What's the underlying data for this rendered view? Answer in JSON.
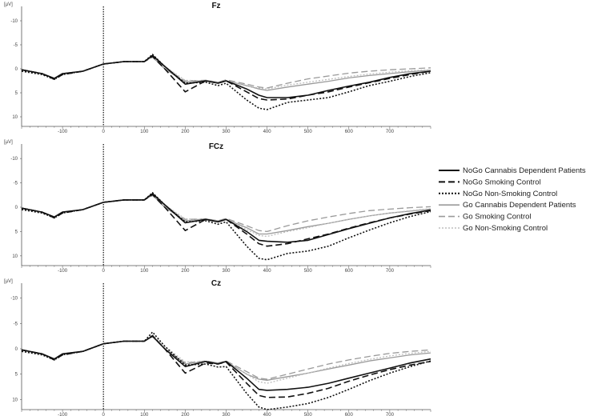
{
  "chart_data": {
    "type": "line",
    "legend_position": "right",
    "x_ticks": [
      "-100",
      "0",
      "100",
      "200",
      "300",
      "400",
      "500",
      "600",
      "700"
    ],
    "unit_label": "[µV]",
    "series": [
      {
        "name": "NoGo Cannabis Dependent Patients",
        "color": "#111111",
        "dash": "solid"
      },
      {
        "name": "NoGo Smoking Control",
        "color": "#111111",
        "dash": "dashed"
      },
      {
        "name": "NoGo Non-Smoking Control",
        "color": "#111111",
        "dash": "dotted"
      },
      {
        "name": "Go Cannabis Dependent Patients",
        "color": "#9a9a9a",
        "dash": "solid"
      },
      {
        "name": "Go Smoking Control",
        "color": "#9a9a9a",
        "dash": "dashed"
      },
      {
        "name": "Go Non-Smoking Control",
        "color": "#bdbdbd",
        "dash": "dotted"
      }
    ],
    "panels": [
      {
        "title": "Fz",
        "y_ticks": [
          "-10",
          "-5",
          "0",
          "5",
          "10"
        ],
        "xlim": [
          -200,
          800
        ],
        "ylim": [
          -12,
          12
        ],
        "y_inverted": true,
        "x": [
          -200,
          -150,
          -120,
          -100,
          -50,
          0,
          50,
          100,
          120,
          150,
          200,
          250,
          280,
          300,
          350,
          380,
          400,
          450,
          500,
          550,
          600,
          650,
          700,
          750,
          800
        ],
        "values": [
          [
            0.2,
            1.0,
            2.0,
            1.0,
            0.5,
            -1.0,
            -1.5,
            -1.5,
            -2.8,
            -0.5,
            3.2,
            2.5,
            3.0,
            2.5,
            4.2,
            5.5,
            6.0,
            6.0,
            5.5,
            4.5,
            3.6,
            2.8,
            1.8,
            1.0,
            0.5
          ],
          [
            0.2,
            1.0,
            2.2,
            1.2,
            0.5,
            -1.0,
            -1.5,
            -1.5,
            -2.6,
            0,
            4.8,
            2.5,
            3.0,
            2.5,
            4.8,
            6.2,
            6.5,
            6.3,
            5.5,
            4.8,
            3.8,
            2.9,
            2.0,
            1.2,
            0.5
          ],
          [
            0.5,
            1.2,
            2.2,
            1.2,
            0.5,
            -1.0,
            -1.5,
            -1.5,
            -3.0,
            -0.5,
            3.0,
            2.8,
            3.5,
            3.0,
            6.5,
            8.2,
            8.5,
            7.0,
            6.5,
            6.0,
            4.8,
            3.5,
            2.6,
            1.6,
            0.8
          ],
          [
            0.2,
            1.0,
            2.0,
            1.0,
            0.5,
            -1.0,
            -1.5,
            -1.5,
            -2.5,
            0,
            2.8,
            2.4,
            2.8,
            2.5,
            3.5,
            4.2,
            4.5,
            3.8,
            3.2,
            2.6,
            1.9,
            1.4,
            1.0,
            0.6,
            0.3
          ],
          [
            0.2,
            1.0,
            2.0,
            1.0,
            0.5,
            -1.0,
            -1.5,
            -1.5,
            -2.4,
            0,
            2.5,
            2.4,
            2.8,
            2.3,
            3.2,
            3.8,
            4.0,
            3.0,
            2.1,
            1.5,
            0.9,
            0.5,
            0.2,
            0.0,
            -0.2
          ],
          [
            0.3,
            1.0,
            2.0,
            1.0,
            0.5,
            -1.0,
            -1.5,
            -1.5,
            -2.8,
            -0.5,
            2.4,
            2.5,
            3.0,
            2.5,
            3.6,
            4.0,
            4.2,
            3.4,
            2.8,
            2.2,
            1.6,
            1.1,
            0.7,
            0.4,
            0.2
          ]
        ]
      },
      {
        "title": "FCz",
        "y_ticks": [
          "-10",
          "-5",
          "0",
          "5",
          "10"
        ],
        "xlim": [
          -200,
          800
        ],
        "ylim": [
          -12,
          12
        ],
        "y_inverted": true,
        "x": [
          -200,
          -150,
          -120,
          -100,
          -50,
          0,
          50,
          100,
          120,
          150,
          200,
          250,
          280,
          300,
          350,
          380,
          400,
          450,
          500,
          550,
          600,
          650,
          700,
          750,
          800
        ],
        "values": [
          [
            0.2,
            1.0,
            2.0,
            1.0,
            0.5,
            -1.0,
            -1.5,
            -1.5,
            -2.8,
            -0.5,
            3.2,
            2.5,
            3.0,
            2.5,
            5.0,
            6.8,
            7.0,
            7.2,
            6.8,
            5.6,
            4.4,
            3.3,
            2.2,
            1.3,
            0.6
          ],
          [
            0.2,
            1.0,
            2.2,
            1.2,
            0.5,
            -1.0,
            -1.5,
            -1.5,
            -2.6,
            0,
            4.8,
            2.5,
            3.0,
            2.5,
            5.5,
            7.5,
            8.0,
            7.5,
            6.5,
            5.5,
            4.3,
            3.2,
            2.2,
            1.4,
            0.7
          ],
          [
            0.5,
            1.2,
            2.2,
            1.2,
            0.5,
            -1.0,
            -1.5,
            -1.5,
            -3.0,
            -0.5,
            3.0,
            2.8,
            3.5,
            3.0,
            8.0,
            10.5,
            10.8,
            9.5,
            9.0,
            8.0,
            6.3,
            4.7,
            3.2,
            1.9,
            0.9
          ],
          [
            0.2,
            1.0,
            2.0,
            1.0,
            0.5,
            -1.0,
            -1.5,
            -1.5,
            -2.5,
            0,
            2.8,
            2.4,
            2.8,
            2.5,
            4.2,
            5.5,
            5.5,
            4.8,
            4.0,
            3.3,
            2.5,
            1.8,
            1.2,
            0.8,
            0.4
          ],
          [
            0.2,
            1.0,
            2.0,
            1.0,
            0.5,
            -1.0,
            -1.5,
            -1.5,
            -2.4,
            0,
            2.5,
            2.4,
            2.8,
            2.3,
            3.8,
            4.8,
            5.0,
            3.8,
            2.8,
            2.0,
            1.3,
            0.7,
            0.4,
            0.1,
            -0.1
          ],
          [
            0.3,
            1.0,
            2.0,
            1.0,
            0.5,
            -1.0,
            -1.5,
            -1.5,
            -2.8,
            -0.5,
            2.4,
            2.5,
            3.0,
            2.5,
            4.6,
            5.8,
            6.0,
            5.0,
            4.2,
            3.3,
            2.5,
            1.8,
            1.2,
            0.7,
            0.3
          ]
        ]
      },
      {
        "title": "Cz",
        "y_ticks": [
          "-10",
          "-5",
          "0",
          "5",
          "10"
        ],
        "xlim": [
          -200,
          800
        ],
        "ylim": [
          -12,
          12
        ],
        "y_inverted": true,
        "x": [
          -200,
          -150,
          -120,
          -100,
          -50,
          0,
          50,
          100,
          120,
          150,
          200,
          250,
          280,
          300,
          350,
          380,
          400,
          450,
          500,
          550,
          600,
          650,
          700,
          750,
          800
        ],
        "values": [
          [
            0.2,
            1.0,
            2.0,
            1.0,
            0.5,
            -1.0,
            -1.5,
            -1.5,
            -2.5,
            0,
            3.5,
            2.5,
            3.0,
            2.5,
            5.8,
            8.0,
            8.2,
            8.0,
            7.6,
            6.8,
            5.8,
            4.8,
            3.8,
            2.8,
            2.0
          ],
          [
            0.2,
            1.0,
            2.2,
            1.2,
            0.5,
            -1.0,
            -1.5,
            -1.5,
            -2.6,
            0,
            4.8,
            2.8,
            3.0,
            2.6,
            6.8,
            9.2,
            9.6,
            9.5,
            8.8,
            7.8,
            6.4,
            5.2,
            4.1,
            3.2,
            2.5
          ],
          [
            0.5,
            1.2,
            2.2,
            1.2,
            0.5,
            -1.0,
            -1.5,
            -1.5,
            -3.3,
            -0.5,
            3.2,
            3.0,
            3.6,
            3.5,
            8.8,
            11.5,
            12.0,
            11.5,
            10.8,
            9.6,
            8.0,
            6.3,
            4.8,
            3.5,
            2.4
          ],
          [
            0.2,
            1.0,
            2.0,
            1.0,
            0.5,
            -1.0,
            -1.5,
            -1.5,
            -2.5,
            0,
            3.0,
            2.5,
            2.8,
            2.5,
            5.0,
            6.0,
            6.2,
            5.5,
            4.8,
            4.0,
            3.2,
            2.4,
            1.8,
            1.2,
            0.8
          ],
          [
            0.2,
            1.0,
            2.0,
            1.0,
            0.5,
            -1.0,
            -1.5,
            -1.5,
            -2.4,
            0,
            2.8,
            2.4,
            2.8,
            2.4,
            4.5,
            5.8,
            6.0,
            5.0,
            4.0,
            3.0,
            2.2,
            1.5,
            0.9,
            0.5,
            0.2
          ],
          [
            0.3,
            1.0,
            2.0,
            1.0,
            0.5,
            -1.0,
            -1.5,
            -1.5,
            -2.8,
            -0.5,
            2.6,
            2.5,
            3.0,
            2.5,
            5.0,
            6.5,
            6.8,
            5.8,
            4.8,
            3.8,
            2.9,
            2.1,
            1.4,
            0.9,
            0.5
          ]
        ]
      }
    ]
  }
}
